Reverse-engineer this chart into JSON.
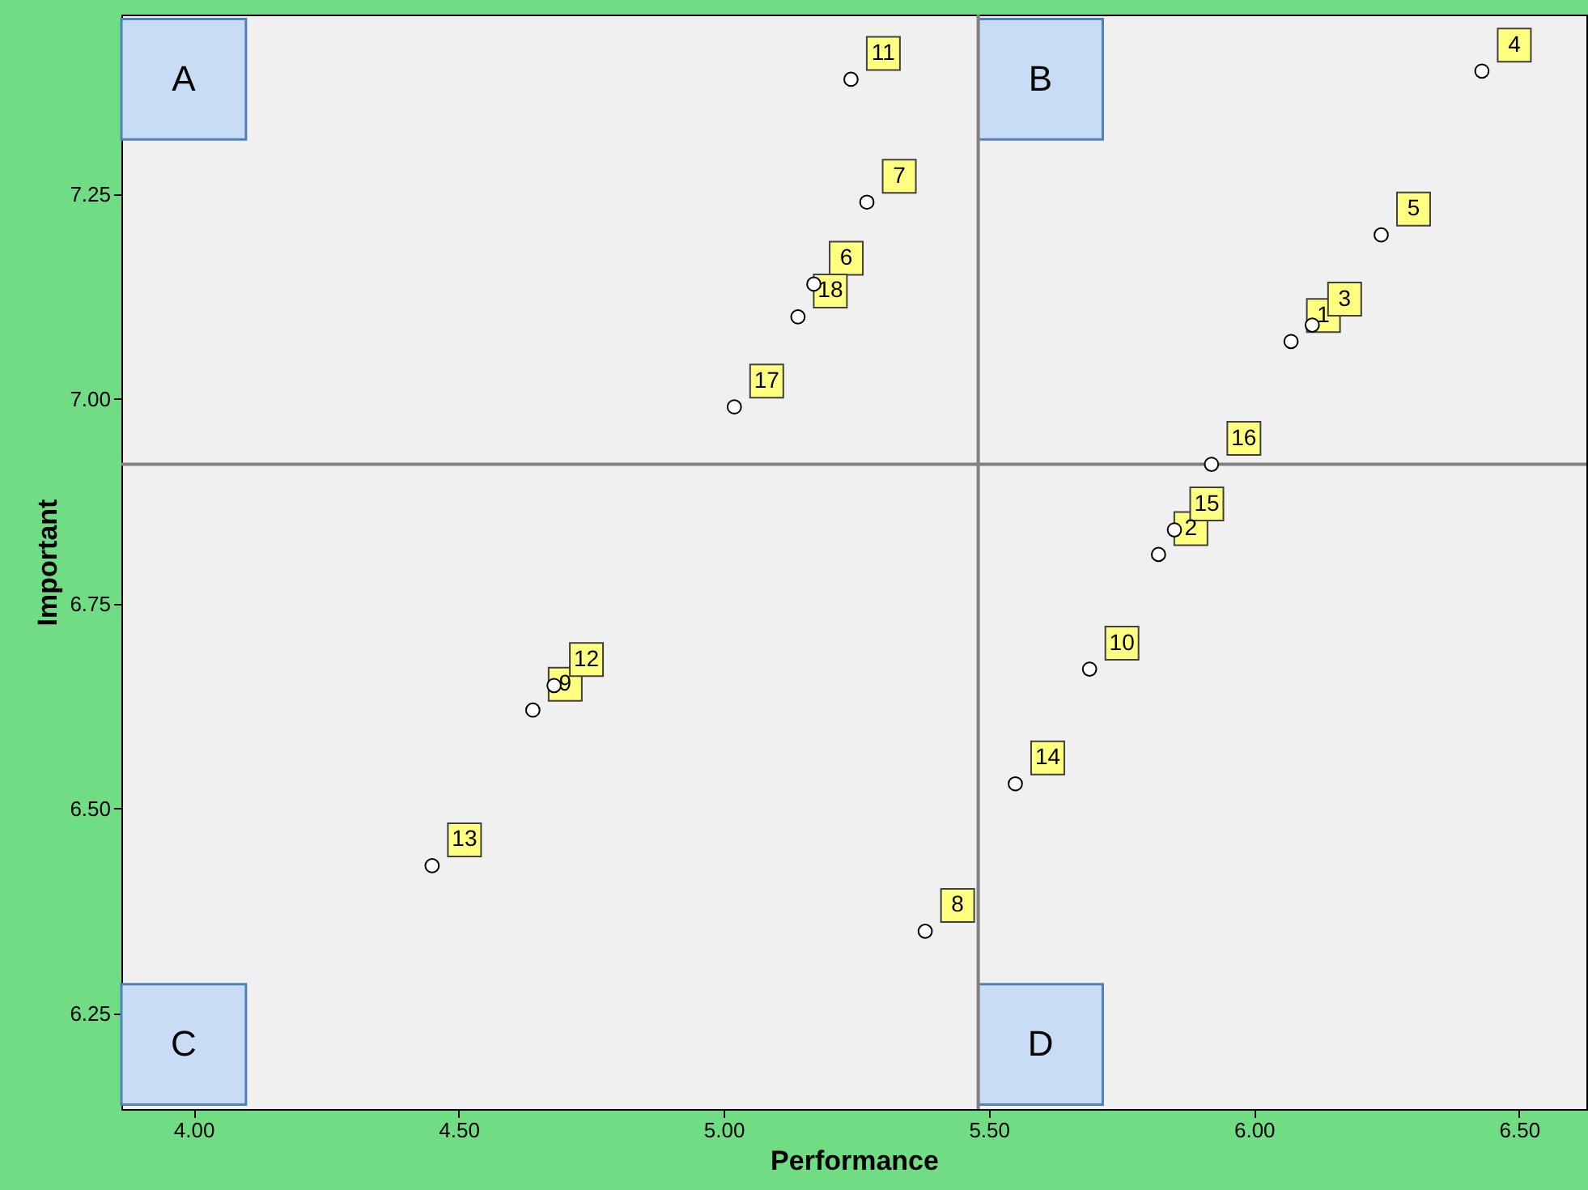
{
  "chart_data": {
    "type": "scatter",
    "xlabel": "Performance",
    "ylabel": "Important",
    "x": [
      6.07,
      5.82,
      6.11,
      6.43,
      6.24,
      5.17,
      5.27,
      5.38,
      4.64,
      5.69,
      5.24,
      4.68,
      4.45,
      5.55,
      5.85,
      5.92,
      5.02,
      5.14
    ],
    "values": [
      7.07,
      6.81,
      7.09,
      7.4,
      7.2,
      7.14,
      7.24,
      6.35,
      6.62,
      6.67,
      7.39,
      6.65,
      6.43,
      6.53,
      6.84,
      6.92,
      6.99,
      7.1
    ],
    "color": "#000000",
    "marker": "circle",
    "grid": false,
    "legend": false,
    "xlim": [
      3.864,
      6.627
    ],
    "ylim": [
      6.133,
      7.469
    ],
    "xticks": [
      {
        "value": 4.0,
        "label": "4.00"
      },
      {
        "value": 4.5,
        "label": "4.50"
      },
      {
        "value": 5.0,
        "label": "5.00"
      },
      {
        "value": 5.5,
        "label": "5.50"
      },
      {
        "value": 6.0,
        "label": "6.00"
      },
      {
        "value": 6.5,
        "label": "6.50"
      }
    ],
    "yticks": [
      {
        "value": 6.25,
        "label": "6.25"
      },
      {
        "value": 6.5,
        "label": "6.50"
      },
      {
        "value": 6.75,
        "label": "6.75"
      },
      {
        "value": 7.0,
        "label": "7.00"
      },
      {
        "value": 7.25,
        "label": "7.25"
      }
    ],
    "ref_lines": [
      {
        "axis": "x",
        "value": 5.48,
        "color": "#808080"
      },
      {
        "axis": "y",
        "value": 6.92,
        "color": "#808080"
      }
    ],
    "annotations": [
      "A",
      "B",
      "C",
      "D",
      {
        "text": "1",
        "x": 6.07,
        "y": 7.07
      },
      {
        "text": "2",
        "x": 5.82,
        "y": 6.81
      },
      {
        "text": "3",
        "x": 6.11,
        "y": 7.09
      },
      {
        "text": "4",
        "x": 6.43,
        "y": 7.4
      },
      {
        "text": "5",
        "x": 6.24,
        "y": 7.2
      },
      {
        "text": "6",
        "x": 5.17,
        "y": 7.14
      },
      {
        "text": "7",
        "x": 5.27,
        "y": 7.24
      },
      {
        "text": "8",
        "x": 5.38,
        "y": 6.35
      },
      {
        "text": "9",
        "x": 4.64,
        "y": 6.62
      },
      {
        "text": "10",
        "x": 5.69,
        "y": 6.67
      },
      {
        "text": "11",
        "x": 5.24,
        "y": 7.39
      },
      {
        "text": "12",
        "x": 4.68,
        "y": 6.65
      },
      {
        "text": "13",
        "x": 4.45,
        "y": 6.43
      },
      {
        "text": "14",
        "x": 5.55,
        "y": 6.53
      },
      {
        "text": "15",
        "x": 5.85,
        "y": 6.84
      },
      {
        "text": "16",
        "x": 5.92,
        "y": 6.92
      },
      {
        "text": "17",
        "x": 5.02,
        "y": 6.99
      },
      {
        "text": "18",
        "x": 5.14,
        "y": 7.1
      }
    ]
  }
}
